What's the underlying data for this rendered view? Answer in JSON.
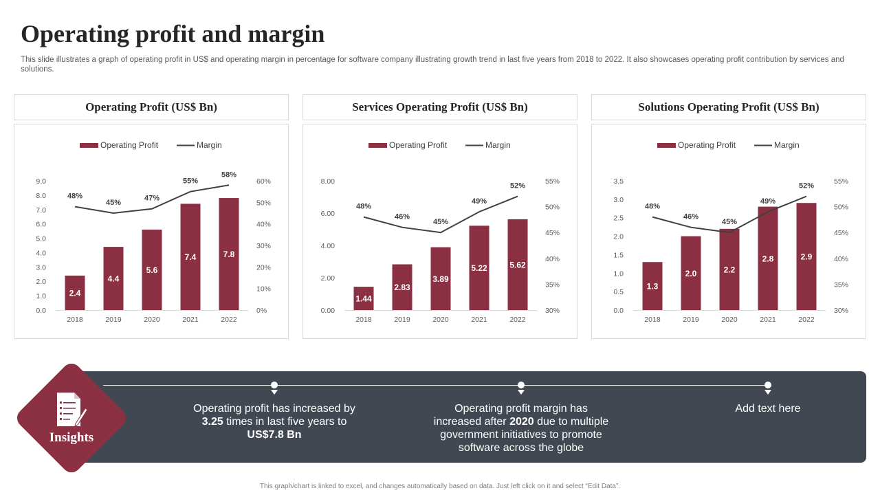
{
  "header": {
    "title": "Operating profit and margin",
    "subtitle": "This slide illustrates a graph of operating profit in US$ and operating margin in percentage for software company illustrating growth trend in last five years from 2018 to 2022. It also showcases operating profit contribution by services and solutions."
  },
  "colors": {
    "bar": "#8b3042",
    "line": "#404040",
    "banner": "#424852",
    "accent": "#8b3042"
  },
  "chart_data": [
    {
      "type": "bar",
      "title": "Operating Profit (US$ Bn)",
      "categories": [
        "2018",
        "2019",
        "2020",
        "2021",
        "2022"
      ],
      "series": [
        {
          "name": "Operating Profit",
          "type": "bar",
          "values": [
            2.4,
            4.4,
            5.6,
            7.4,
            7.8
          ],
          "labels": [
            "2.4",
            "4.4",
            "5.6",
            "7.4",
            "7.8"
          ]
        },
        {
          "name": "Margin",
          "type": "line",
          "axis": "right",
          "values": [
            48,
            45,
            47,
            55,
            58
          ],
          "labels": [
            "48%",
            "45%",
            "47%",
            "55%",
            "58%"
          ]
        }
      ],
      "ylim": [
        0,
        9
      ],
      "yticks": [
        "0.0",
        "1.0",
        "2.0",
        "3.0",
        "4.0",
        "5.0",
        "6.0",
        "7.0",
        "8.0",
        "9.0"
      ],
      "y2lim": [
        0,
        60
      ],
      "y2ticks": [
        "0%",
        "10%",
        "20%",
        "30%",
        "40%",
        "50%",
        "60%"
      ],
      "legend": [
        "Operating Profit",
        "Margin"
      ],
      "legend_position": "top"
    },
    {
      "type": "bar",
      "title": "Services Operating Profit (US$ Bn)",
      "categories": [
        "2018",
        "2019",
        "2020",
        "2021",
        "2022"
      ],
      "series": [
        {
          "name": "Operating Profit",
          "type": "bar",
          "values": [
            1.44,
            2.83,
            3.89,
            5.22,
            5.62
          ],
          "labels": [
            "1.44",
            "2.83",
            "3.89",
            "5.22",
            "5.62"
          ]
        },
        {
          "name": "Margin",
          "type": "line",
          "axis": "right",
          "values": [
            48,
            46,
            45,
            49,
            52
          ],
          "labels": [
            "48%",
            "46%",
            "45%",
            "49%",
            "52%"
          ]
        }
      ],
      "ylim": [
        0,
        8
      ],
      "yticks": [
        "0.00",
        "2.00",
        "4.00",
        "6.00",
        "8.00"
      ],
      "y2lim": [
        30,
        55
      ],
      "y2ticks": [
        "30%",
        "35%",
        "40%",
        "45%",
        "50%",
        "55%"
      ],
      "legend": [
        "Operating Profit",
        "Margin"
      ],
      "legend_position": "top"
    },
    {
      "type": "bar",
      "title": "Solutions Operating Profit (US$ Bn)",
      "categories": [
        "2018",
        "2019",
        "2020",
        "2021",
        "2022"
      ],
      "series": [
        {
          "name": "Operating Profit",
          "type": "bar",
          "values": [
            1.3,
            2.0,
            2.2,
            2.8,
            2.9
          ],
          "labels": [
            "1.3",
            "2.0",
            "2.2",
            "2.8",
            "2.9"
          ]
        },
        {
          "name": "Margin",
          "type": "line",
          "axis": "right",
          "values": [
            48,
            46,
            45,
            49,
            52
          ],
          "labels": [
            "48%",
            "46%",
            "45%",
            "49%",
            "52%"
          ]
        }
      ],
      "ylim": [
        0,
        3.5
      ],
      "yticks": [
        "0.0",
        "0.5",
        "1.0",
        "1.5",
        "2.0",
        "2.5",
        "3.0",
        "3.5"
      ],
      "y2lim": [
        30,
        55
      ],
      "y2ticks": [
        "30%",
        "35%",
        "40%",
        "45%",
        "50%",
        "55%"
      ],
      "legend": [
        "Operating Profit",
        "Margin"
      ],
      "legend_position": "top"
    }
  ],
  "insights": {
    "label": "Insights",
    "items": [
      {
        "pre": "Operating profit has increased by ",
        "b1": "3.25",
        "mid": " times in last five years to ",
        "b2": "US$7.8 Bn",
        "post": ""
      },
      {
        "pre": "Operating profit margin has increased after ",
        "b1": "2020",
        "mid": " due to multiple government  initiatives to promote software across the globe",
        "b2": "",
        "post": ""
      },
      {
        "pre": "Add text here",
        "b1": "",
        "mid": "",
        "b2": "",
        "post": ""
      }
    ]
  },
  "footer": "This graph/chart is linked to excel, and changes automatically based on data. Just left click on it and select “Edit Data”."
}
